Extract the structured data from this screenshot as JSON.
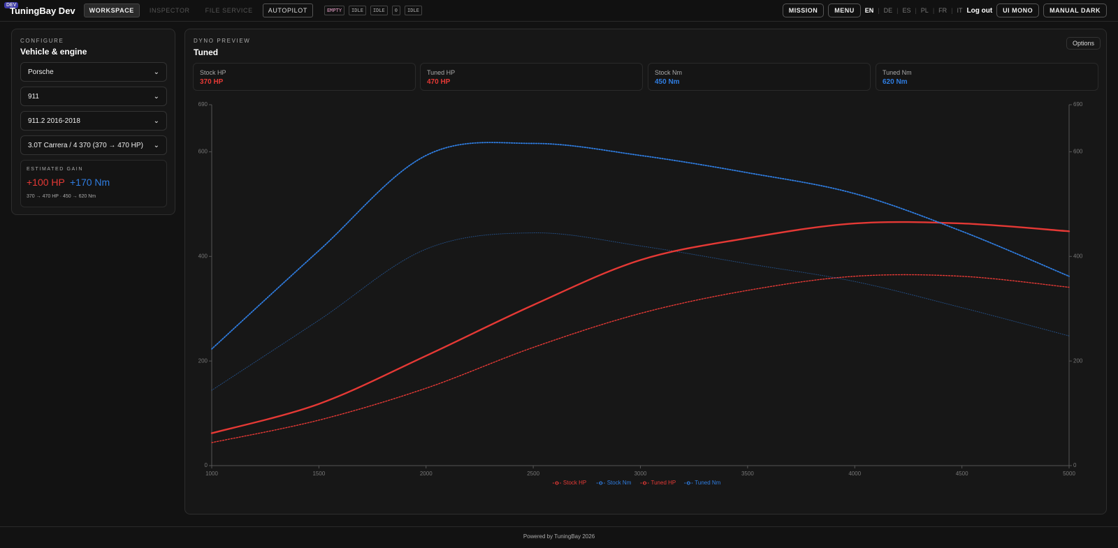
{
  "header": {
    "badge": "DEV",
    "brand": "TuningBay Dev",
    "tabs": [
      "WORKSPACE",
      "INSPECTOR",
      "FILE SERVICE",
      "AUTOPILOT"
    ],
    "status": [
      "EMPTY",
      "IDLE",
      "IDLE",
      "0",
      "IDLE"
    ],
    "mission": "MISSION",
    "menu": "MENU",
    "languages": [
      "EN",
      "DE",
      "ES",
      "PL",
      "FR",
      "IT"
    ],
    "logout": "Log out",
    "ui_mono": "UI MONO",
    "manual_dark": "MANUAL DARK"
  },
  "configure": {
    "eyebrow": "CONFIGURE",
    "title": "Vehicle & engine",
    "selects": [
      "Porsche",
      "911",
      "911.2 2016-2018",
      "3.0T Carrera / 4 370 (370 → 470 HP)"
    ],
    "gain": {
      "label": "ESTIMATED GAIN",
      "hp": "+100 HP",
      "nm": "+170 Nm",
      "detail": "370 → 470 HP · 450 → 620 Nm"
    }
  },
  "dyno": {
    "eyebrow": "DYNO PREVIEW",
    "title": "Tuned",
    "options": "Options",
    "cards": [
      {
        "label": "Stock HP",
        "value": "370 HP"
      },
      {
        "label": "Tuned HP",
        "value": "470 HP"
      },
      {
        "label": "Stock Nm",
        "value": "450 Nm"
      },
      {
        "label": "Tuned Nm",
        "value": "620 Nm"
      }
    ]
  },
  "chart_data": {
    "type": "line",
    "x": [
      1000,
      1500,
      2000,
      2500,
      3000,
      3500,
      4000,
      4500,
      5000
    ],
    "series": [
      {
        "name": "Stock HP",
        "color": "#e53935",
        "line_style": "dashed",
        "values": [
          44,
          87,
          148,
          226,
          291,
          335,
          362,
          362,
          341
        ]
      },
      {
        "name": "Stock Nm",
        "color": "#2f7de1",
        "line_style": "faint-dotted",
        "values": [
          144,
          278,
          414,
          445,
          420,
          386,
          352,
          302,
          248
        ]
      },
      {
        "name": "Tuned HP",
        "color": "#e53935",
        "line_style": "solid",
        "values": [
          62,
          118,
          210,
          307,
          393,
          435,
          463,
          463,
          448
        ]
      },
      {
        "name": "Tuned Nm",
        "color": "#2f7de1",
        "line_style": "dotted",
        "values": [
          223,
          411,
          593,
          616,
          593,
          560,
          520,
          448,
          362
        ]
      }
    ],
    "xlim": [
      1000,
      5000
    ],
    "xticks": [
      1000,
      1500,
      2000,
      2500,
      3000,
      3500,
      4000,
      4500,
      5000
    ],
    "ylim": [
      0,
      690
    ],
    "yticks": [
      0,
      200,
      400,
      600,
      690
    ],
    "y2lim": [
      0,
      690
    ],
    "y2ticks": [
      0,
      200,
      400,
      600,
      690
    ],
    "legend": "bottom"
  },
  "footer": "Powered by TuningBay 2026"
}
